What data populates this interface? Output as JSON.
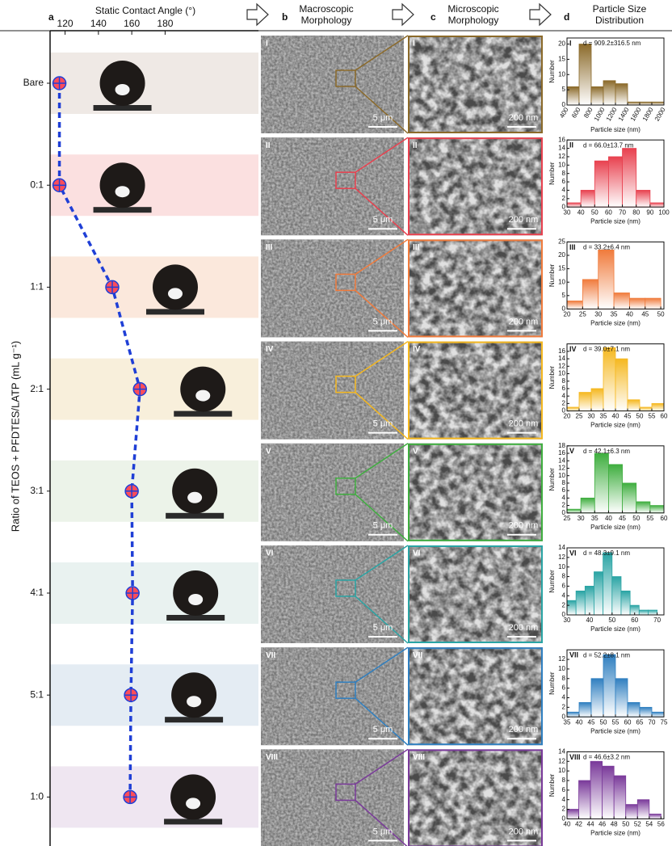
{
  "panel_labels": [
    "a",
    "b",
    "c",
    "d"
  ],
  "column_titles": [
    "Macroscopic Morphology",
    "Microscopic Morphology",
    "Particle Size Distribution"
  ],
  "sem": {
    "macro_scale": "5 μm",
    "micro_scale": "200 nm"
  },
  "chart_data": [
    {
      "type": "line",
      "xlabel": "Static Contact Angle (°)",
      "ylabel": "Ratio of TEOS + PFDTES/LATP (mL g⁻¹)",
      "categories": [
        "Bare",
        "0:1",
        "1:1",
        "2:1",
        "3:1",
        "4:1",
        "5:1",
        "1:0"
      ],
      "values": [
        116.6,
        116.6,
        148.3,
        164.9,
        160.0,
        160.5,
        159.5,
        159.0
      ],
      "xlim": [
        111,
        236
      ],
      "xticks": [
        120,
        140,
        160,
        180
      ],
      "color": "#1f3fd6",
      "marker_color": "#ff4d5a"
    },
    {
      "type": "histogram",
      "label": "I",
      "title": "d = 909.2±316.5 nm",
      "xlabel": "Particle size (nm)",
      "ylabel": "Number",
      "bins": [
        400,
        600,
        800,
        1000,
        1200,
        1400,
        1600,
        1800,
        2000
      ],
      "values": [
        6,
        20,
        6,
        8,
        7,
        1,
        1,
        1
      ],
      "xlim": [
        400,
        2000
      ],
      "ylim": [
        0,
        22
      ],
      "xticks": [
        400,
        600,
        800,
        1000,
        1200,
        1400,
        1600,
        1800,
        2000
      ],
      "yticks": [
        0,
        5,
        10,
        15,
        20
      ],
      "xtick_rotation": 60,
      "color": "#8b6a2a"
    },
    {
      "type": "histogram",
      "label": "II",
      "title": "d = 66.0±13.7 nm",
      "xlabel": "Particle size (nm)",
      "ylabel": "Number",
      "bins": [
        30,
        40,
        50,
        60,
        70,
        80,
        90,
        100
      ],
      "values": [
        1,
        4,
        11,
        12,
        14,
        4,
        1
      ],
      "xlim": [
        30,
        100
      ],
      "ylim": [
        0,
        16
      ],
      "xticks": [
        30,
        40,
        50,
        60,
        70,
        80,
        90,
        100
      ],
      "yticks": [
        0,
        2,
        4,
        6,
        8,
        10,
        12,
        14,
        16
      ],
      "color": "#e8414f"
    },
    {
      "type": "histogram",
      "label": "III",
      "title": "d = 33.2±6.4 nm",
      "xlabel": "Particle size (nm)",
      "ylabel": "Number",
      "bins": [
        20,
        25,
        30,
        35,
        40,
        45,
        50
      ],
      "values": [
        3,
        11,
        22,
        6,
        4,
        4
      ],
      "xlim": [
        20,
        51
      ],
      "ylim": [
        0,
        25
      ],
      "xticks": [
        20,
        25,
        30,
        35,
        40,
        45,
        50
      ],
      "yticks": [
        0,
        5,
        10,
        15,
        20,
        25
      ],
      "color": "#f07b3c"
    },
    {
      "type": "histogram",
      "label": "IV",
      "title": "d = 39.0±7.1 nm",
      "xlabel": "Particle size (nm)",
      "ylabel": "Number",
      "bins": [
        20,
        25,
        30,
        35,
        40,
        45,
        50,
        55,
        60
      ],
      "values": [
        1,
        5,
        6,
        17,
        14,
        3,
        1,
        2
      ],
      "xlim": [
        20,
        60
      ],
      "ylim": [
        0,
        18
      ],
      "xticks": [
        20,
        25,
        30,
        35,
        40,
        45,
        50,
        55,
        60
      ],
      "yticks": [
        0,
        2,
        4,
        6,
        8,
        10,
        12,
        14,
        16
      ],
      "color": "#f5b820"
    },
    {
      "type": "histogram",
      "label": "V",
      "title": "d = 42.1±6.3 nm",
      "xlabel": "Particle size (nm)",
      "ylabel": "Number",
      "bins": [
        25,
        30,
        35,
        40,
        45,
        50,
        55,
        60
      ],
      "values": [
        1,
        4,
        16,
        13,
        8,
        3,
        2
      ],
      "xlim": [
        25,
        60
      ],
      "ylim": [
        0,
        18
      ],
      "xticks": [
        25,
        30,
        35,
        40,
        45,
        50,
        55,
        60
      ],
      "yticks": [
        0,
        2,
        4,
        6,
        8,
        10,
        12,
        14,
        16,
        18
      ],
      "color": "#3fae3f"
    },
    {
      "type": "histogram",
      "label": "VI",
      "title": "d = 48.3±9.1 nm",
      "xlabel": "Particle size (nm)",
      "ylabel": "Number",
      "bins": [
        30,
        34,
        38,
        42,
        46,
        50,
        54,
        58,
        62,
        66,
        70
      ],
      "values": [
        3,
        5,
        6,
        9,
        13,
        8,
        5,
        2,
        1,
        1
      ],
      "xlim": [
        30,
        73
      ],
      "ylim": [
        0,
        14
      ],
      "xticks": [
        30,
        40,
        50,
        60,
        70
      ],
      "yticks": [
        0,
        2,
        4,
        6,
        8,
        10,
        12,
        14
      ],
      "color": "#2aa4a4"
    },
    {
      "type": "histogram",
      "label": "VII",
      "title": "d = 52.2±8.1 nm",
      "xlabel": "Particle size (nm)",
      "ylabel": "Number",
      "bins": [
        35,
        40,
        45,
        50,
        55,
        60,
        65,
        70,
        75
      ],
      "values": [
        1,
        3,
        8,
        13,
        8,
        3,
        2,
        1
      ],
      "xlim": [
        35,
        75
      ],
      "ylim": [
        0,
        14
      ],
      "xticks": [
        35,
        40,
        45,
        50,
        55,
        60,
        65,
        70,
        75
      ],
      "yticks": [
        0,
        2,
        4,
        6,
        8,
        10,
        12
      ],
      "color": "#2f7fc0"
    },
    {
      "type": "histogram",
      "label": "VIII",
      "title": "d = 46.6±3.2 nm",
      "xlabel": "Particle size (nm)",
      "ylabel": "Number",
      "bins": [
        40,
        42,
        44,
        46,
        48,
        50,
        52,
        54,
        56
      ],
      "values": [
        2,
        8,
        12,
        11,
        9,
        3,
        4,
        1
      ],
      "xlim": [
        40,
        56.5
      ],
      "ylim": [
        0,
        14
      ],
      "xticks": [
        40,
        42,
        44,
        46,
        48,
        50,
        52,
        54,
        56
      ],
      "yticks": [
        0,
        2,
        4,
        6,
        8,
        10,
        12,
        14
      ],
      "color": "#7a3a9a"
    }
  ]
}
